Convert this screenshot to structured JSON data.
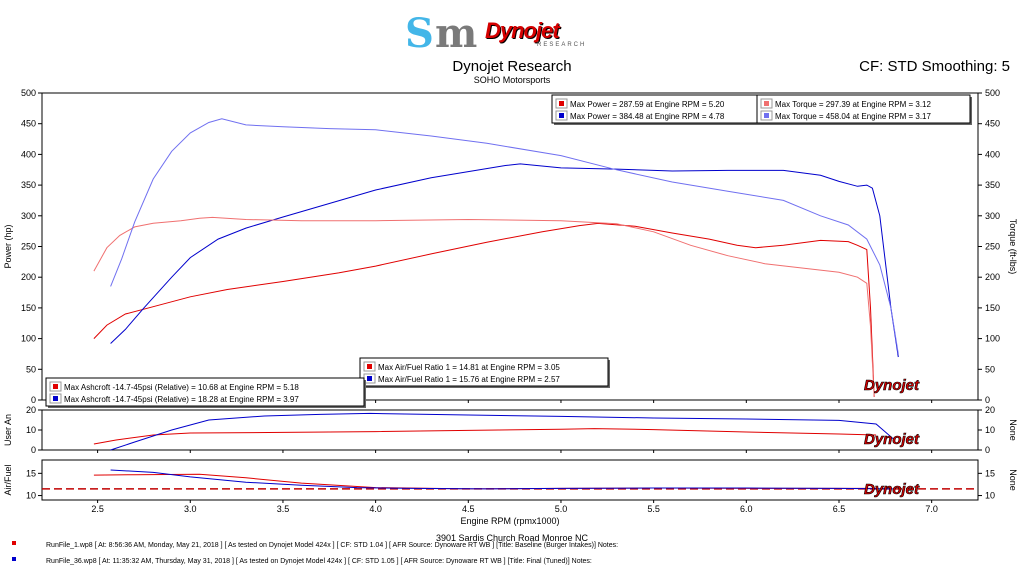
{
  "header": {
    "logo_text": "Dynojet",
    "logo_sub": "RESEARCH",
    "title": "Dynojet Research",
    "subtitle": "SOHO Motorsports",
    "cf_label": "CF: STD Smoothing: 5"
  },
  "colors": {
    "run1_dark": "#e00000",
    "run1_light": "#f07070",
    "run2_dark": "#0000cc",
    "run2_light": "#7070f0",
    "af_target": "#c00000"
  },
  "chart_data": [
    {
      "type": "line",
      "ylabel": "Power (hp)",
      "y2label": "Torque (ft-lbs)",
      "ylim": [
        0,
        500
      ],
      "xlim": [
        2.2,
        7.25
      ],
      "yticks": [
        0,
        50,
        100,
        150,
        200,
        250,
        300,
        350,
        400,
        450,
        500
      ],
      "grid": false,
      "legend_position": "top-right",
      "legend": [
        "Max Power = 287.59 at Engine RPM = 5.20",
        "Max Power = 384.48 at Engine RPM = 4.78",
        "Max Torque = 297.39 at Engine RPM = 3.12",
        "Max Torque = 458.04 at Engine RPM = 3.17"
      ],
      "legend2": [
        "Max Air/Fuel Ratio 1 = 14.81 at Engine RPM = 3.05",
        "Max Air/Fuel Ratio 1 = 15.76 at Engine RPM = 2.57"
      ],
      "legend3": [
        "Max Ashcroft -14.7-45psi (Relative) = 10.68 at Engine RPM = 5.18",
        "Max Ashcroft -14.7-45psi (Relative) = 18.28 at Engine RPM = 3.97"
      ],
      "series": [
        {
          "name": "Max Power = 287.59 at Engine RPM = 5.20",
          "color": "#e00000",
          "x": [
            2.48,
            2.55,
            2.65,
            2.8,
            3.0,
            3.2,
            3.5,
            3.8,
            4.0,
            4.3,
            4.6,
            4.9,
            5.1,
            5.2,
            5.4,
            5.6,
            5.8,
            5.95,
            6.05,
            6.2,
            6.4,
            6.55,
            6.6,
            6.65,
            6.67,
            6.69
          ],
          "y": [
            100,
            122,
            140,
            152,
            168,
            180,
            193,
            207,
            218,
            238,
            257,
            274,
            284,
            287.59,
            283,
            272,
            262,
            252,
            248,
            252,
            260,
            258,
            252,
            245,
            150,
            5
          ]
        },
        {
          "name": "Max Power = 384.48 at Engine RPM = 4.78",
          "color": "#0000cc",
          "x": [
            2.57,
            2.65,
            2.75,
            2.9,
            3.0,
            3.15,
            3.3,
            3.5,
            3.75,
            4.0,
            4.3,
            4.5,
            4.7,
            4.78,
            5.0,
            5.3,
            5.6,
            5.9,
            6.2,
            6.4,
            6.5,
            6.6,
            6.65,
            6.68,
            6.72,
            6.78,
            6.82
          ],
          "y": [
            92,
            115,
            150,
            200,
            232,
            262,
            280,
            298,
            320,
            342,
            362,
            372,
            382,
            384.48,
            378,
            376,
            373,
            374,
            374,
            366,
            356,
            348,
            350,
            345,
            300,
            150,
            70
          ]
        },
        {
          "name": "Max Torque = 297.39 at Engine RPM = 3.12",
          "color": "#f07070",
          "x": [
            2.48,
            2.55,
            2.62,
            2.7,
            2.8,
            2.95,
            3.05,
            3.12,
            3.3,
            3.6,
            4.0,
            4.5,
            5.0,
            5.3,
            5.5,
            5.7,
            5.9,
            6.1,
            6.3,
            6.5,
            6.6,
            6.65,
            6.67,
            6.69
          ],
          "y": [
            210,
            248,
            268,
            282,
            288,
            292,
            296,
            297.39,
            294,
            292,
            292,
            294,
            292,
            287,
            274,
            252,
            235,
            222,
            215,
            208,
            200,
            190,
            120,
            5
          ]
        },
        {
          "name": "Max Torque = 458.04 at Engine RPM = 3.17",
          "color": "#7070f0",
          "x": [
            2.57,
            2.63,
            2.7,
            2.8,
            2.9,
            3.0,
            3.1,
            3.17,
            3.3,
            3.5,
            3.75,
            4.0,
            4.3,
            4.6,
            5.0,
            5.3,
            5.6,
            5.9,
            6.2,
            6.4,
            6.55,
            6.65,
            6.72,
            6.78,
            6.82
          ],
          "y": [
            185,
            230,
            290,
            360,
            405,
            435,
            452,
            458.04,
            448,
            445,
            442,
            440,
            430,
            418,
            398,
            375,
            355,
            340,
            325,
            300,
            285,
            262,
            220,
            150,
            75
          ]
        }
      ]
    },
    {
      "type": "line",
      "ylabel": "User An",
      "y2label": "None",
      "ylim": [
        0,
        20
      ],
      "yticks": [
        0,
        10,
        20
      ],
      "series": [
        {
          "name": "Max Ashcroft -14.7-45psi (Relative) = 10.68 at Engine RPM = 5.18",
          "color": "#e00000",
          "x": [
            2.48,
            2.6,
            2.8,
            3.0,
            3.5,
            4.0,
            4.5,
            5.0,
            5.18,
            5.5,
            6.0,
            6.5,
            6.7
          ],
          "y": [
            3,
            5,
            7.5,
            8.5,
            8.8,
            9.2,
            9.8,
            10.4,
            10.68,
            10.2,
            9.0,
            8.0,
            7.5
          ]
        },
        {
          "name": "Max Ashcroft -14.7-45psi (Relative) = 18.28 at Engine RPM = 3.97",
          "color": "#0000cc",
          "x": [
            2.57,
            2.7,
            2.9,
            3.1,
            3.4,
            3.7,
            3.97,
            4.5,
            5.0,
            5.5,
            6.0,
            6.5,
            6.7,
            6.8
          ],
          "y": [
            0,
            4,
            10,
            15,
            17,
            17.8,
            18.28,
            17.5,
            16.8,
            16.0,
            15.5,
            14.8,
            13,
            5
          ]
        }
      ]
    },
    {
      "type": "line",
      "ylabel": "Air/Fuel",
      "y2label": "None",
      "ylim": [
        9,
        18
      ],
      "yticks": [
        10,
        15
      ],
      "target": 11.5,
      "series": [
        {
          "name": "Max Air/Fuel Ratio 1 = 14.81 at Engine RPM = 3.05",
          "color": "#e00000",
          "x": [
            2.48,
            2.7,
            3.05,
            3.3,
            3.6,
            4.0,
            4.5,
            5.0,
            5.5,
            6.0,
            6.5,
            6.7
          ],
          "y": [
            14.6,
            14.7,
            14.81,
            14.0,
            12.8,
            11.8,
            11.5,
            11.6,
            11.7,
            11.6,
            11.6,
            11.6
          ]
        },
        {
          "name": "Max Air/Fuel Ratio 1 = 15.76 at Engine RPM = 2.57",
          "color": "#0000cc",
          "x": [
            2.57,
            2.8,
            3.0,
            3.3,
            3.6,
            3.9,
            4.2,
            4.6,
            5.0,
            5.5,
            6.0,
            6.5,
            6.8
          ],
          "y": [
            15.76,
            15.2,
            14.2,
            13.0,
            12.3,
            11.8,
            11.6,
            11.5,
            11.6,
            11.7,
            11.7,
            11.6,
            11.5
          ]
        }
      ]
    }
  ],
  "x_axis": {
    "label": "Engine RPM (rpmx1000)",
    "ticks": [
      "2.5",
      "3.0",
      "3.5",
      "4.0",
      "4.5",
      "5.0",
      "5.5",
      "6.0",
      "6.5",
      "7.0"
    ],
    "tick_values": [
      2.5,
      3.0,
      3.5,
      4.0,
      4.5,
      5.0,
      5.5,
      6.0,
      6.5,
      7.0
    ]
  },
  "footer": {
    "address": "3901 Sardis Church Road Monroe NC",
    "runs": [
      "RunFile_1.wp8  [ At:  8:56:36 AM, Monday, May 21, 2018 ]  [ As tested on Dynojet Model 424x ]  [ CF: STD 1.04 ]  [ AFR Source: Dynoware RT WB ]  [Title: Baseline (Burger Intakes)]   Notes:",
      "RunFile_36.wp8  [ At:  11:35:32 AM, Thursday, May 31, 2018 ]  [ As tested on Dynojet Model 424x ]  [ CF: STD 1.05 ]  [ AFR Source: Dynoware RT WB ]  [Title: Final (Tuned)]   Notes:"
    ]
  }
}
